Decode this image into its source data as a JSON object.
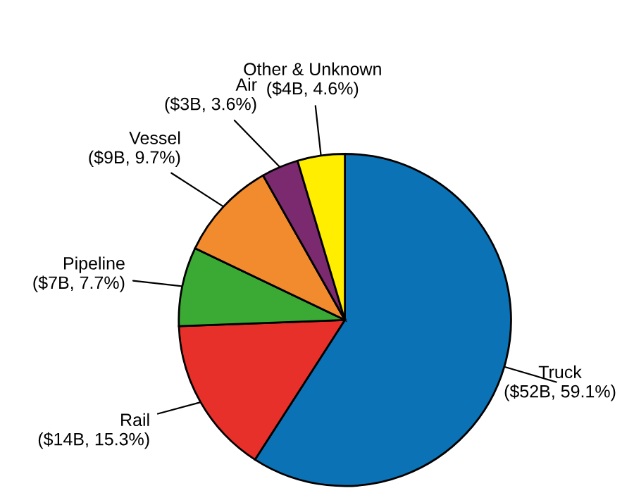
{
  "chart_data": {
    "type": "pie",
    "categories": [
      "Truck",
      "Rail",
      "Pipeline",
      "Vessel",
      "Air",
      "Other & Unknown"
    ],
    "values": [
      59.1,
      15.3,
      7.7,
      9.7,
      3.6,
      4.6
    ],
    "value_labels": [
      "($52B, 59.1%)",
      "($14B, 15.3%)",
      "($7B, 7.7%)",
      "($9B, 9.7%)",
      "($3B, 3.6%)",
      "($4B, 4.6%)"
    ],
    "colors": [
      "#0b72b5",
      "#e8302a",
      "#3aaa35",
      "#f28a2e",
      "#7b2a6f",
      "#ffee00"
    ]
  }
}
